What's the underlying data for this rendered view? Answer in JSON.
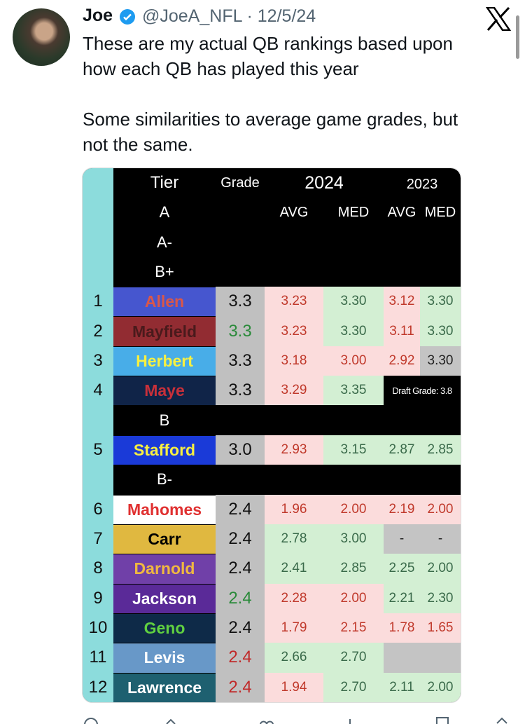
{
  "tweet": {
    "author": {
      "name": "Joe",
      "handle_line": "@JoeA_NFL · 12/5/24"
    },
    "paragraphs": [
      [
        "These are my actual QB rankings based upon",
        "how each QB has played this year"
      ],
      [
        "Some similarities to average game grades, but",
        "not the same."
      ]
    ]
  },
  "table": {
    "header": {
      "tier": "Tier",
      "grade": "Grade",
      "season_a": "2024",
      "season_b": "2023",
      "columns": [
        "AVG",
        "MED",
        "AVG",
        "MED"
      ]
    },
    "rows": [
      {
        "tier": "A"
      },
      {
        "tier": "A-"
      },
      {
        "tier": "B+"
      },
      {
        "rank": "1",
        "name": "Allen",
        "name_bg": "#4656cf",
        "name_color": "#d9574a",
        "grade": "3.3",
        "grade_color": "#111111",
        "cells": [
          {
            "text": "3.23",
            "fill": "#fbdcdc"
          },
          {
            "text": "3.30",
            "fill": "#d3efd3"
          },
          {
            "text": "3.12",
            "fill": "#fbdcdc"
          },
          {
            "text": "3.30",
            "fill": "#d3efd3"
          }
        ]
      },
      {
        "rank": "2",
        "name": "Mayfield",
        "name_bg": "#922c32",
        "name_color": "#4a1a1c",
        "grade": "3.3",
        "grade_color": "#2a8a3a",
        "cells": [
          {
            "text": "3.23",
            "fill": "#fbdcdc"
          },
          {
            "text": "3.30",
            "fill": "#d3efd3"
          },
          {
            "text": "3.11",
            "fill": "#fbdcdc"
          },
          {
            "text": "3.30",
            "fill": "#d3efd3"
          }
        ]
      },
      {
        "rank": "3",
        "name": "Herbert",
        "name_bg": "#48ade8",
        "name_color": "#f8f040",
        "grade": "3.3",
        "grade_color": "#111111",
        "cells": [
          {
            "text": "3.18",
            "fill": "#fbdcdc"
          },
          {
            "text": "3.00",
            "fill": "#fbdcdc"
          },
          {
            "text": "2.92",
            "fill": "#fbdcdc"
          },
          {
            "text": "3.30",
            "fill": "#c4c4c4"
          }
        ]
      },
      {
        "rank": "4",
        "name": "Maye",
        "name_bg": "#102448",
        "name_color": "#c8303a",
        "grade": "3.3",
        "grade_color": "#111111",
        "cells": [
          {
            "text": "3.29",
            "fill": "#fbdcdc"
          },
          {
            "text": "3.35",
            "fill": "#d3efd3"
          },
          {
            "text": "Draft Grade: 3.8",
            "fill": "#000000"
          }
        ]
      },
      {
        "tier": "B"
      },
      {
        "rank": "5",
        "name": "Stafford",
        "name_bg": "#1a3ad8",
        "name_color": "#f8f040",
        "grade": "3.0",
        "grade_color": "#111111",
        "cells": [
          {
            "text": "2.93",
            "fill": "#fbdcdc"
          },
          {
            "text": "3.15",
            "fill": "#d3efd3"
          },
          {
            "text": "2.87",
            "fill": "#d3efd3"
          },
          {
            "text": "2.85",
            "fill": "#d3efd3"
          }
        ]
      },
      {
        "tier": "B-"
      },
      {
        "rank": "6",
        "name": "Mahomes",
        "name_bg": "#ffffff",
        "name_color": "#e03030",
        "grade": "2.4",
        "grade_color": "#111111",
        "cells": [
          {
            "text": "1.96",
            "fill": "#fbdcdc"
          },
          {
            "text": "2.00",
            "fill": "#fbdcdc"
          },
          {
            "text": "2.19",
            "fill": "#fbdcdc"
          },
          {
            "text": "2.00",
            "fill": "#fbdcdc"
          }
        ]
      },
      {
        "rank": "7",
        "name": "Carr",
        "name_bg": "#e0b840",
        "name_color": "#000000",
        "grade": "2.4",
        "grade_color": "#111111",
        "cells": [
          {
            "text": "2.78",
            "fill": "#d3efd3"
          },
          {
            "text": "3.00",
            "fill": "#d3efd3"
          },
          {
            "text": "-",
            "fill": "#c4c4c4"
          },
          {
            "text": "-",
            "fill": "#c4c4c4"
          }
        ]
      },
      {
        "rank": "8",
        "name": "Darnold",
        "name_bg": "#7040a8",
        "name_color": "#f0b840",
        "grade": "2.4",
        "grade_color": "#111111",
        "cells": [
          {
            "text": "2.41",
            "fill": "#d3efd3"
          },
          {
            "text": "2.85",
            "fill": "#d3efd3"
          },
          {
            "text": "2.25",
            "fill": "#d3efd3"
          },
          {
            "text": "2.00",
            "fill": "#d3efd3"
          }
        ]
      },
      {
        "rank": "9",
        "name": "Jackson",
        "name_bg": "#5a2a98",
        "name_color": "#ffffff",
        "grade": "2.4",
        "grade_color": "#2a8a3a",
        "cells": [
          {
            "text": "2.28",
            "fill": "#fbdcdc"
          },
          {
            "text": "2.00",
            "fill": "#fbdcdc"
          },
          {
            "text": "2.21",
            "fill": "#d3efd3"
          },
          {
            "text": "2.30",
            "fill": "#d3efd3"
          }
        ]
      },
      {
        "rank": "10",
        "name": "Geno",
        "name_bg": "#0e2a48",
        "name_color": "#60d040",
        "grade": "2.4",
        "grade_color": "#111111",
        "cells": [
          {
            "text": "1.79",
            "fill": "#fbdcdc"
          },
          {
            "text": "2.15",
            "fill": "#fbdcdc"
          },
          {
            "text": "1.78",
            "fill": "#fbdcdc"
          },
          {
            "text": "1.65",
            "fill": "#fbdcdc"
          }
        ]
      },
      {
        "rank": "11",
        "name": "Levis",
        "name_bg": "#6898c8",
        "name_color": "#ffffff",
        "grade": "2.4",
        "grade_color": "#c02a2a",
        "cells": [
          {
            "text": "2.66",
            "fill": "#d3efd3"
          },
          {
            "text": "2.70",
            "fill": "#d3efd3"
          },
          {
            "fill": "#c4c4c4"
          }
        ]
      },
      {
        "rank": "12",
        "name": "Lawrence",
        "name_bg": "#1e6070",
        "name_color": "#ffffff",
        "grade": "2.4",
        "grade_color": "#c02a2a",
        "cells": [
          {
            "text": "1.94",
            "fill": "#fbdcdc"
          },
          {
            "text": "2.70",
            "fill": "#d3efd3"
          },
          {
            "text": "2.11",
            "fill": "#d3efd3"
          },
          {
            "text": "2.00",
            "fill": "#d3efd3"
          }
        ]
      }
    ]
  }
}
